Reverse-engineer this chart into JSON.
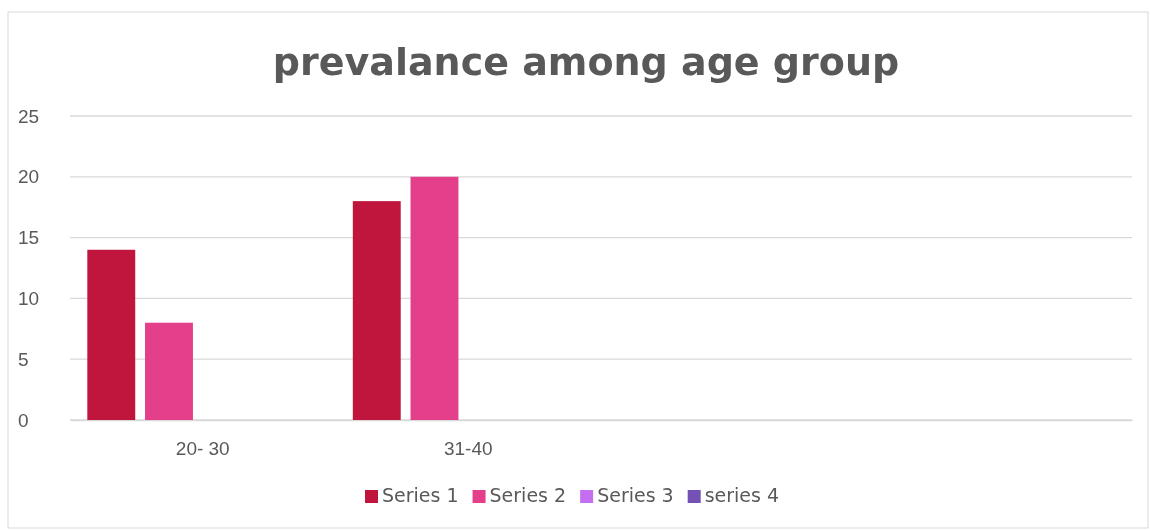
{
  "chart_data": {
    "type": "bar",
    "title": "prevalance among age group",
    "categories": [
      "20- 30",
      "31-40",
      null,
      null
    ],
    "series": [
      {
        "name": "Series 1",
        "color": "#c0163e",
        "values": [
          14,
          18,
          null,
          null
        ]
      },
      {
        "name": "Series 2",
        "color": "#e43f8a",
        "values": [
          8,
          20,
          null,
          null
        ]
      },
      {
        "name": "Series 3",
        "color": "#c56ff0",
        "values": [
          null,
          null,
          null,
          null
        ]
      },
      {
        "name": "series 4",
        "color": "#7451b5",
        "values": [
          null,
          null,
          null,
          null
        ]
      }
    ],
    "ylim": [
      0,
      25
    ],
    "yticks": [
      0,
      5,
      10,
      15,
      20,
      25
    ],
    "grid": "y",
    "legend": "bottom"
  }
}
